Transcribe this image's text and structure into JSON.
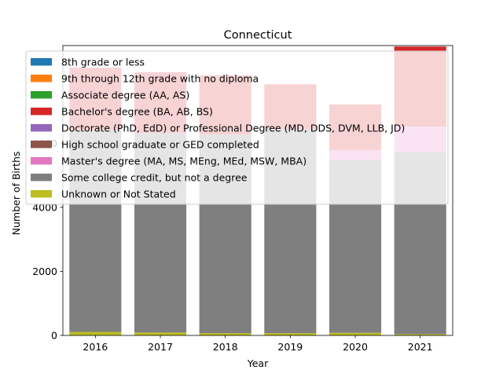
{
  "chart_data": {
    "type": "bar",
    "title": "Connecticut",
    "xlabel": "Year",
    "ylabel": "Number of Births",
    "categories": [
      "2016",
      "2017",
      "2018",
      "2019",
      "2020",
      "2021"
    ],
    "ylim": [
      0,
      9050
    ],
    "yticks": [
      0,
      2000,
      4000,
      6000
    ],
    "grid": false,
    "legend_position": "upper-left",
    "series": [
      {
        "name": "8th grade or less",
        "color": "#1f77b4",
        "values": [
          0,
          0,
          0,
          0,
          0,
          0
        ]
      },
      {
        "name": "9th through 12th grade with no diploma",
        "color": "#ff7f0e",
        "values": [
          0,
          0,
          0,
          0,
          0,
          0
        ]
      },
      {
        "name": "Associate degree (AA, AS)",
        "color": "#2ca02c",
        "values": [
          0,
          0,
          0,
          0,
          0,
          0
        ]
      },
      {
        "name": "Bachelor's degree (BA, AB, BS)",
        "color": "#d62728",
        "values": [
          1950,
          1900,
          1850,
          1400,
          1430,
          2500
        ]
      },
      {
        "name": "Doctorate (PhD, EdD) or Professional Degree (MD, DDS, DVM, LLB, JD)",
        "color": "#9467bd",
        "values": [
          0,
          0,
          0,
          0,
          0,
          0
        ]
      },
      {
        "name": "High school graduate or GED completed",
        "color": "#8c564b",
        "values": [
          0,
          0,
          0,
          0,
          0,
          0
        ]
      },
      {
        "name": "Master's degree (MA, MS, MEng, MEd, MSW, MBA)",
        "color": "#e377c2",
        "values": [
          0,
          0,
          0,
          0,
          300,
          800
        ]
      },
      {
        "name": "Some college credit, but not a degree",
        "color": "#7f7f7f",
        "values": [
          6300,
          6230,
          6200,
          6370,
          5400,
          5680
        ]
      },
      {
        "name": "Unknown or Not Stated",
        "color": "#bcbd22",
        "values": [
          110,
          90,
          70,
          70,
          80,
          40
        ]
      }
    ]
  }
}
